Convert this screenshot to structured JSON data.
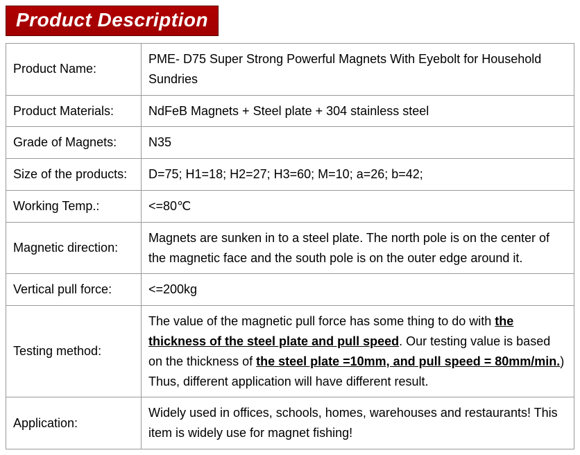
{
  "title": "Product Description",
  "rows": [
    {
      "label": "Product Name:",
      "value": "PME- D75 Super Strong Powerful Magnets With Eyebolt for Household Sundries"
    },
    {
      "label": "Product Materials:",
      "value": "NdFeB Magnets + Steel plate + 304 stainless steel"
    },
    {
      "label": "Grade of Magnets:",
      "value": "N35"
    },
    {
      "label": "Size of the products:",
      "value": "D=75; H1=18; H2=27; H3=60; M=10; a=26; b=42;"
    },
    {
      "label": "Working Temp.:",
      "value": "<=80℃"
    },
    {
      "label": "Magnetic direction:",
      "value": "Magnets are sunken in to a steel plate. The north pole is on the center of the magnetic face and the south pole is on the outer edge around it."
    },
    {
      "label": "Vertical pull force:",
      "value": "<=200kg"
    },
    {
      "label": "Testing method:",
      "parts": [
        {
          "t": "The value of the magnetic pull force has some thing to do with "
        },
        {
          "t": "the thickness of the steel plate and pull speed",
          "ub": true
        },
        {
          "t": ". Our testing value is based on the thickness of "
        },
        {
          "t": "the steel plate =10mm, and pull speed = 80mm/min.",
          "ub": true
        },
        {
          "t": ") Thus, different application will have different result."
        }
      ]
    },
    {
      "label": "Application:",
      "value": "Widely used in offices, schools, homes, warehouses and restaurants! This item is widely use for magnet fishing!"
    }
  ],
  "colors": {
    "header_bg": "#a50000",
    "header_text": "#ffffff",
    "border": "#999999"
  }
}
